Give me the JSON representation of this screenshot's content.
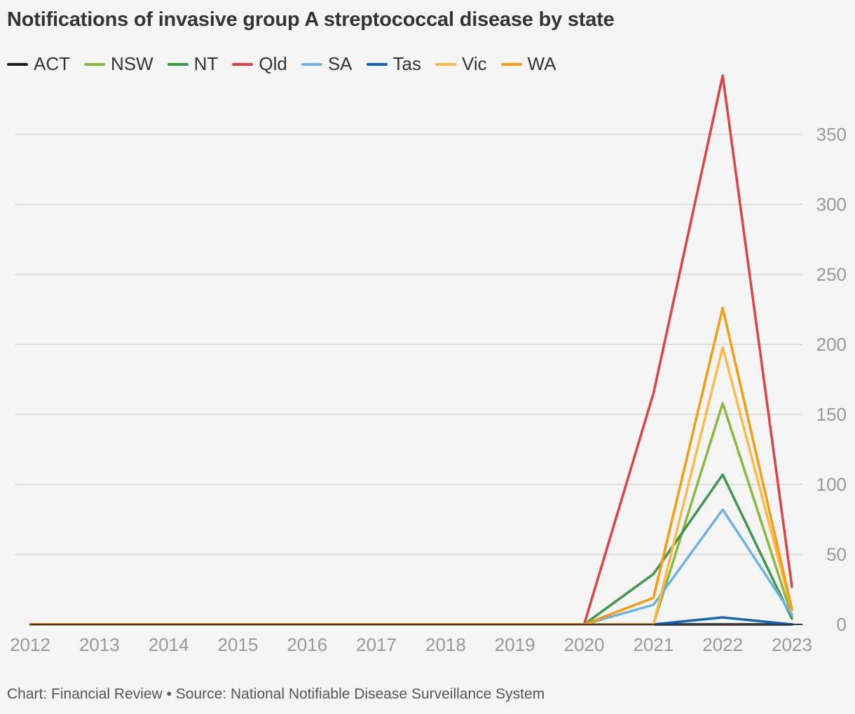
{
  "chart_data": {
    "type": "line",
    "title": "Notifications of invasive group A streptococcal disease by state",
    "x": [
      "2012",
      "2013",
      "2014",
      "2015",
      "2016",
      "2017",
      "2018",
      "2019",
      "2020",
      "2021",
      "2022",
      "2023"
    ],
    "ylim": [
      0,
      400
    ],
    "yticks": [
      0,
      50,
      100,
      150,
      200,
      250,
      300,
      350
    ],
    "grid": true,
    "legend_position": "top-left",
    "series": [
      {
        "name": "ACT",
        "color": "#1a1a1a",
        "values": [
          0,
          0,
          0,
          0,
          0,
          0,
          0,
          0,
          0,
          0,
          0,
          0
        ]
      },
      {
        "name": "NSW",
        "color": "#8ab83f",
        "values": [
          0,
          0,
          0,
          0,
          0,
          0,
          0,
          0,
          0,
          0,
          158,
          6
        ]
      },
      {
        "name": "NT",
        "color": "#3f974a",
        "values": [
          0,
          0,
          0,
          0,
          0,
          0,
          0,
          0,
          0,
          36,
          107,
          4
        ]
      },
      {
        "name": "Qld",
        "color": "#dc4343",
        "values": [
          0,
          0,
          0,
          0,
          0,
          0,
          0,
          0,
          0,
          165,
          392,
          27
        ]
      },
      {
        "name": "SA",
        "color": "#6cb2e6",
        "values": [
          0,
          0,
          0,
          0,
          0,
          0,
          0,
          0,
          0,
          14,
          82,
          7
        ]
      },
      {
        "name": "Tas",
        "color": "#1266b8",
        "values": [
          0,
          0,
          0,
          0,
          0,
          0,
          0,
          0,
          0,
          0,
          5,
          0
        ]
      },
      {
        "name": "Vic",
        "color": "#fdb94a",
        "values": [
          0,
          0,
          0,
          0,
          0,
          0,
          0,
          0,
          0,
          0,
          198,
          10
        ]
      },
      {
        "name": "WA",
        "color": "#f59c12",
        "values": [
          0,
          0,
          0,
          0,
          0,
          0,
          0,
          0,
          0,
          19,
          226,
          11
        ]
      }
    ]
  },
  "footer": {
    "text": "Chart: Financial Review • Source: National Notifiable Disease Surveillance System"
  }
}
